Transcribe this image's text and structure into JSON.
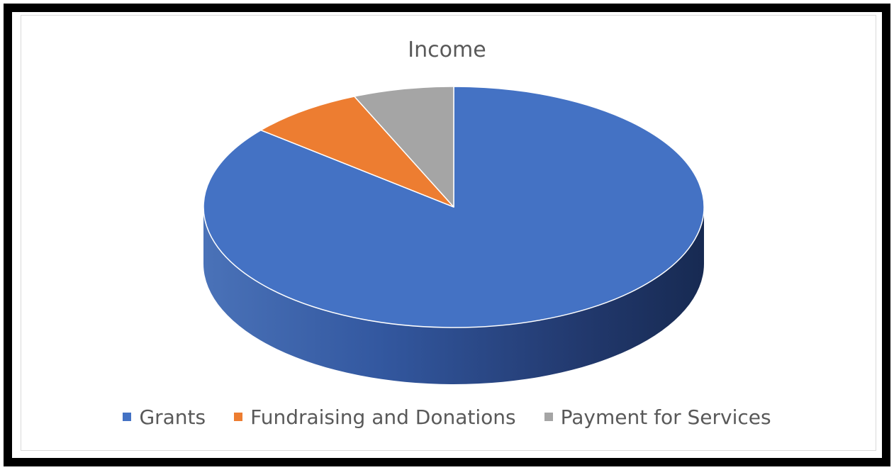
{
  "chart_data": {
    "type": "pie",
    "title": "Income",
    "style": "3d",
    "legend_position": "bottom",
    "slices": [
      {
        "label": "Grants",
        "value": 86,
        "color": "#4472C4"
      },
      {
        "label": "Fundraising and Donations",
        "value": 7.5,
        "color": "#ED7D31"
      },
      {
        "label": "Payment for Services",
        "value": 6.5,
        "color": "#A5A5A5"
      }
    ]
  }
}
